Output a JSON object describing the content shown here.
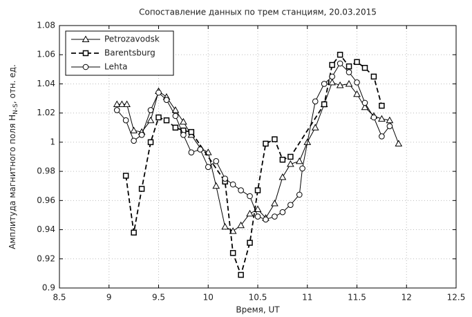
{
  "chart_data": {
    "type": "line",
    "title": "Сопоставление данных по трем станциям, 20.03.2015",
    "xlabel": "Время, UT",
    "ylabel": "Амплитуда магнитного поля H",
    "ylabel_sub": "N-S",
    "ylabel_suffix": ", отн. ед.",
    "xlim": [
      8.5,
      12.5
    ],
    "xticks": [
      8.5,
      9,
      9.5,
      10,
      10.5,
      11,
      11.5,
      12,
      12.5
    ],
    "ylim": [
      0.9,
      1.08
    ],
    "yticks": [
      0.9,
      0.92,
      0.94,
      0.96,
      0.98,
      1,
      1.02,
      1.04,
      1.06,
      1.08
    ],
    "grid": true,
    "legend": "upper left",
    "series": [
      {
        "name": "Petrozavodsk",
        "color": "#000000",
        "marker": "triangle",
        "linestyle": "solid",
        "x": [
          9.08,
          9.13,
          9.18,
          9.25,
          9.33,
          9.42,
          9.5,
          9.58,
          9.67,
          9.75,
          9.83,
          9.92,
          10.0,
          10.08,
          10.17,
          10.25,
          10.33,
          10.42,
          10.5,
          10.58,
          10.67,
          10.75,
          10.83,
          10.92,
          11.0,
          11.08,
          11.17,
          11.25,
          11.33,
          11.42,
          11.5,
          11.58,
          11.67,
          11.75,
          11.83,
          11.92
        ],
        "values": [
          1.026,
          1.026,
          1.026,
          1.008,
          1.007,
          1.015,
          1.035,
          1.031,
          1.022,
          1.014,
          1.005,
          0.996,
          0.993,
          0.97,
          0.942,
          0.939,
          0.943,
          0.951,
          0.954,
          0.948,
          0.958,
          0.976,
          0.985,
          0.987,
          1.0,
          1.01,
          1.026,
          1.041,
          1.039,
          1.04,
          1.033,
          1.024,
          1.018,
          1.016,
          1.015,
          0.999
        ]
      },
      {
        "name": "Barentsburg",
        "color": "#000000",
        "marker": "square",
        "linestyle": "dashed",
        "x": [
          9.17,
          9.25,
          9.33,
          9.42,
          9.5,
          9.58,
          9.67,
          9.75,
          9.83,
          10.17,
          10.25,
          10.33,
          10.42,
          10.5,
          10.58,
          10.67,
          10.75,
          10.83,
          11.17,
          11.25,
          11.33,
          11.42,
          11.5,
          11.58,
          11.67,
          11.75
        ],
        "values": [
          0.977,
          0.938,
          0.968,
          1.0,
          1.017,
          1.015,
          1.01,
          1.008,
          1.007,
          0.973,
          0.924,
          0.909,
          0.931,
          0.967,
          0.999,
          1.002,
          0.988,
          0.99,
          1.026,
          1.053,
          1.06,
          1.052,
          1.055,
          1.051,
          1.045,
          1.025
        ]
      },
      {
        "name": "Lehta",
        "color": "#000000",
        "marker": "circle",
        "linestyle": "solid",
        "x": [
          9.08,
          9.17,
          9.25,
          9.33,
          9.42,
          9.5,
          9.58,
          9.67,
          9.75,
          9.83,
          9.92,
          10.0,
          10.08,
          10.17,
          10.25,
          10.33,
          10.42,
          10.5,
          10.58,
          10.67,
          10.75,
          10.83,
          10.92,
          10.95,
          11.08,
          11.17,
          11.25,
          11.33,
          11.42,
          11.5,
          11.58,
          11.67,
          11.75,
          11.83
        ],
        "values": [
          1.022,
          1.015,
          1.001,
          1.005,
          1.022,
          1.034,
          1.029,
          1.018,
          1.005,
          0.993,
          0.995,
          0.983,
          0.987,
          0.975,
          0.971,
          0.967,
          0.963,
          0.949,
          0.947,
          0.949,
          0.952,
          0.957,
          0.964,
          0.982,
          1.028,
          1.04,
          1.045,
          1.054,
          1.048,
          1.041,
          1.027,
          1.017,
          1.004,
          1.011
        ]
      }
    ]
  }
}
